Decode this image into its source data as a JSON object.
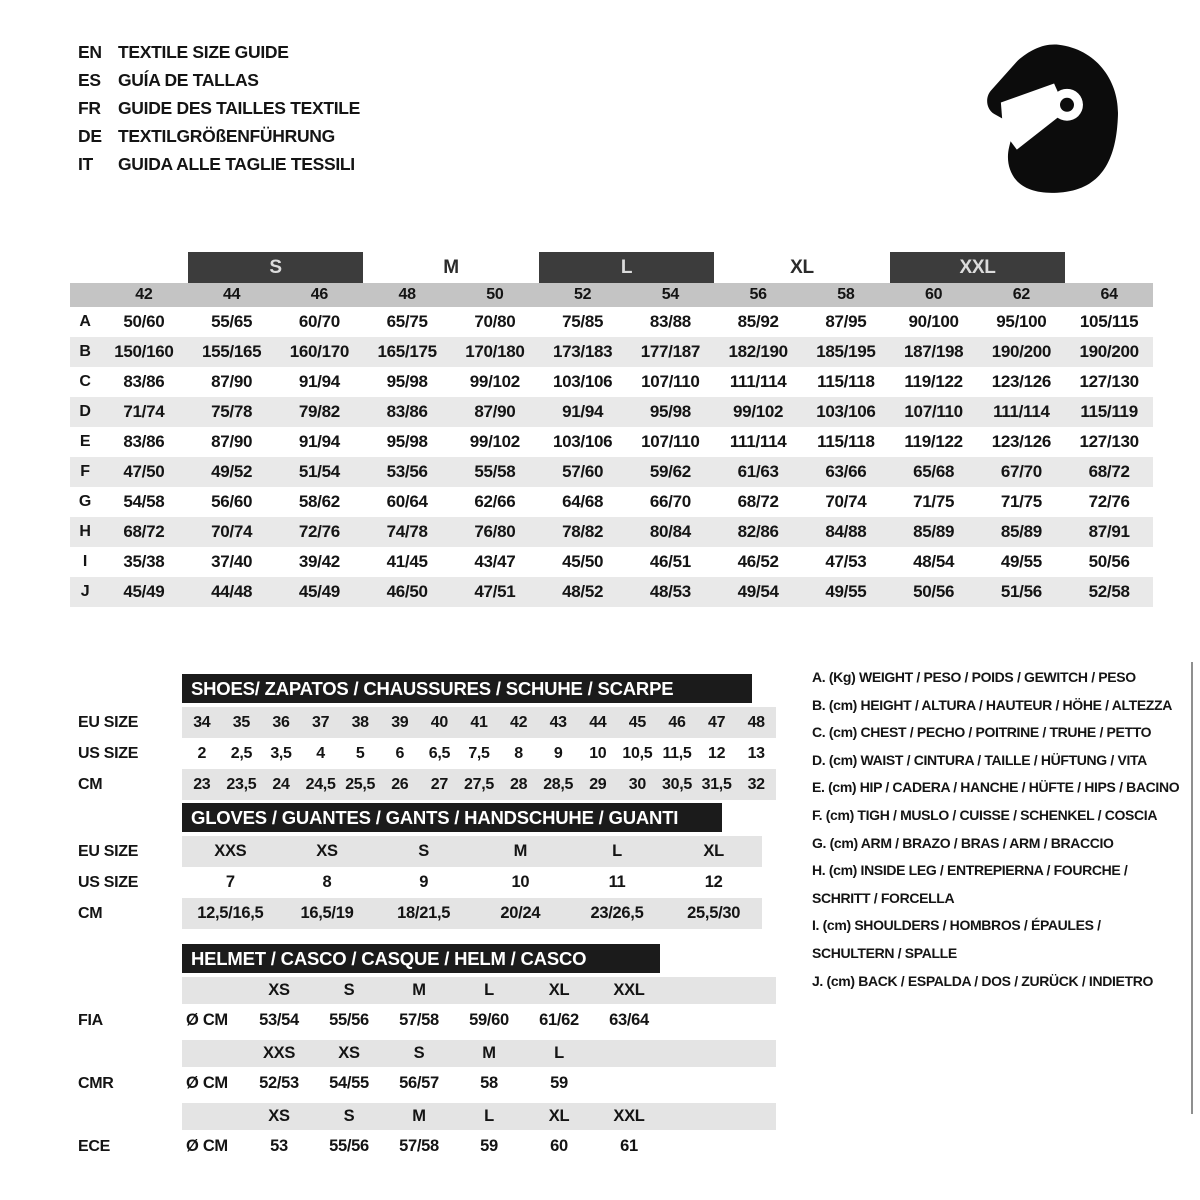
{
  "colors": {
    "bar": "#1b1b1b",
    "box": "#3c3c3c",
    "numband": "#c4c4c4",
    "band": "#e9e9e9",
    "band2": "#e4e4e4",
    "ink": "#141414"
  },
  "languages": [
    {
      "code": "EN",
      "title": "TEXTILE SIZE GUIDE"
    },
    {
      "code": "ES",
      "title": "GUÍA DE TALLAS"
    },
    {
      "code": "FR",
      "title": "GUIDE DES TAILLES TEXTILE"
    },
    {
      "code": "DE",
      "title": "TEXTILGRÖßENFÜHRUNG"
    },
    {
      "code": "IT",
      "title": "GUIDA ALLE TAGLIE TESSILI"
    }
  ],
  "logo_icon": "full-face-helmet",
  "main_table": {
    "size_groups": [
      {
        "label": "S",
        "boxed": true
      },
      {
        "label": "M",
        "boxed": false
      },
      {
        "label": "L",
        "boxed": true
      },
      {
        "label": "XL",
        "boxed": false
      },
      {
        "label": "XXL",
        "boxed": true
      }
    ],
    "columns": [
      "42",
      "44",
      "46",
      "48",
      "50",
      "52",
      "54",
      "56",
      "58",
      "60",
      "62",
      "64"
    ],
    "rows": [
      {
        "label": "A",
        "values": [
          "50/60",
          "55/65",
          "60/70",
          "65/75",
          "70/80",
          "75/85",
          "83/88",
          "85/92",
          "87/95",
          "90/100",
          "95/100",
          "105/115"
        ]
      },
      {
        "label": "B",
        "values": [
          "150/160",
          "155/165",
          "160/170",
          "165/175",
          "170/180",
          "173/183",
          "177/187",
          "182/190",
          "185/195",
          "187/198",
          "190/200",
          "190/200"
        ]
      },
      {
        "label": "C",
        "values": [
          "83/86",
          "87/90",
          "91/94",
          "95/98",
          "99/102",
          "103/106",
          "107/110",
          "111/114",
          "115/118",
          "119/122",
          "123/126",
          "127/130"
        ]
      },
      {
        "label": "D",
        "values": [
          "71/74",
          "75/78",
          "79/82",
          "83/86",
          "87/90",
          "91/94",
          "95/98",
          "99/102",
          "103/106",
          "107/110",
          "111/114",
          "115/119"
        ]
      },
      {
        "label": "E",
        "values": [
          "83/86",
          "87/90",
          "91/94",
          "95/98",
          "99/102",
          "103/106",
          "107/110",
          "111/114",
          "115/118",
          "119/122",
          "123/126",
          "127/130"
        ]
      },
      {
        "label": "F",
        "values": [
          "47/50",
          "49/52",
          "51/54",
          "53/56",
          "55/58",
          "57/60",
          "59/62",
          "61/63",
          "63/66",
          "65/68",
          "67/70",
          "68/72"
        ]
      },
      {
        "label": "G",
        "values": [
          "54/58",
          "56/60",
          "58/62",
          "60/64",
          "62/66",
          "64/68",
          "66/70",
          "68/72",
          "70/74",
          "71/75",
          "71/75",
          "72/76"
        ]
      },
      {
        "label": "H",
        "values": [
          "68/72",
          "70/74",
          "72/76",
          "74/78",
          "76/80",
          "78/82",
          "80/84",
          "82/86",
          "84/88",
          "85/89",
          "85/89",
          "87/91"
        ]
      },
      {
        "label": "I",
        "values": [
          "35/38",
          "37/40",
          "39/42",
          "41/45",
          "43/47",
          "45/50",
          "46/51",
          "46/52",
          "47/53",
          "48/54",
          "49/55",
          "50/56"
        ]
      },
      {
        "label": "J",
        "values": [
          "45/49",
          "44/48",
          "45/49",
          "46/50",
          "47/51",
          "48/52",
          "48/53",
          "49/54",
          "49/55",
          "50/56",
          "51/56",
          "52/58"
        ]
      }
    ]
  },
  "shoes": {
    "title": "SHOES/ ZAPATOS / CHAUSSURES / SCHUHE / SCARPE",
    "row_labels": [
      "EU SIZE",
      "US SIZE",
      "CM"
    ],
    "rows": [
      [
        "34",
        "35",
        "36",
        "37",
        "38",
        "39",
        "40",
        "41",
        "42",
        "43",
        "44",
        "45",
        "46",
        "47",
        "48"
      ],
      [
        "2",
        "2,5",
        "3,5",
        "4",
        "5",
        "6",
        "6,5",
        "7,5",
        "8",
        "9",
        "10",
        "10,5",
        "11,5",
        "12",
        "13"
      ],
      [
        "23",
        "23,5",
        "24",
        "24,5",
        "25,5",
        "26",
        "27",
        "27,5",
        "28",
        "28,5",
        "29",
        "30",
        "30,5",
        "31,5",
        "32"
      ]
    ]
  },
  "gloves": {
    "title": "GLOVES / GUANTES / GANTS / HANDSCHUHE / GUANTI",
    "row_labels": [
      "EU SIZE",
      "US SIZE",
      "CM"
    ],
    "rows": [
      [
        "XXS",
        "XS",
        "S",
        "M",
        "L",
        "XL"
      ],
      [
        "7",
        "8",
        "9",
        "10",
        "11",
        "12"
      ],
      [
        "12,5/16,5",
        "16,5/19",
        "18/21,5",
        "20/24",
        "23/26,5",
        "25,5/30"
      ]
    ]
  },
  "helmet_table": {
    "title": "HELMET / CASCO / CASQUE / HELM / CASCO",
    "unit_label": "Ø CM",
    "standards": [
      {
        "label": "FIA",
        "sizes": [
          "XS",
          "S",
          "M",
          "L",
          "XL",
          "XXL"
        ],
        "values": [
          "53/54",
          "55/56",
          "57/58",
          "59/60",
          "61/62",
          "63/64"
        ]
      },
      {
        "label": "CMR",
        "sizes": [
          "XXS",
          "XS",
          "S",
          "M",
          "L"
        ],
        "values": [
          "52/53",
          "54/55",
          "56/57",
          "58",
          "59"
        ]
      },
      {
        "label": "ECE",
        "sizes": [
          "XS",
          "S",
          "M",
          "L",
          "XL",
          "XXL"
        ],
        "values": [
          "53",
          "55/56",
          "57/58",
          "59",
          "60",
          "61"
        ]
      }
    ]
  },
  "legend": [
    "A. (Kg) WEIGHT / PESO / POIDS / GEWITCH / PESO",
    "B. (cm) HEIGHT / ALTURA / HAUTEUR / HÖHE / ALTEZZA",
    "C. (cm) CHEST / PECHO / POITRINE / TRUHE / PETTO",
    "D. (cm) WAIST / CINTURA / TAILLE / HÜFTUNG / VITA",
    "E. (cm) HIP / CADERA / HANCHE / HÜFTE / HIPS / BACINO",
    "F. (cm) TIGH / MUSLO / CUISSE / SCHENKEL / COSCIA",
    "G. (cm) ARM / BRAZO / BRAS / ARM / BRACCIO",
    "H. (cm) INSIDE LEG / ENTREPIERNA / FOURCHE /",
    "SCHRITT / FORCELLA",
    "I. (cm) SHOULDERS / HOMBROS / ÉPAULES /",
    "SCHULTERN / SPALLE",
    "J. (cm) BACK / ESPALDA / DOS / ZURÜCK / INDIETRO"
  ]
}
